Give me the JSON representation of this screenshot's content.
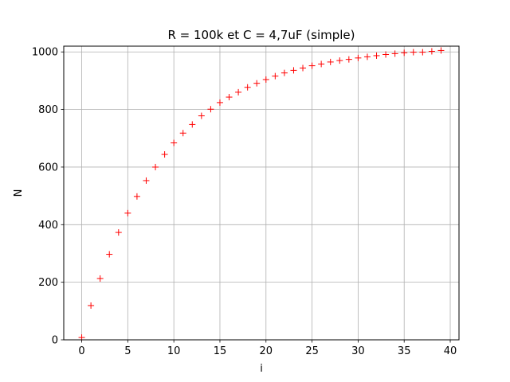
{
  "chart_data": {
    "type": "scatter",
    "title": "R = 100k et C = 4,7uF (simple)",
    "xlabel": "i",
    "ylabel": "N",
    "xlim": [
      -1.95,
      40.95
    ],
    "ylim": [
      0,
      1020
    ],
    "xticks": [
      0,
      5,
      10,
      15,
      20,
      25,
      30,
      35,
      40
    ],
    "yticks": [
      0,
      200,
      400,
      600,
      800,
      1000
    ],
    "grid": true,
    "marker": "+",
    "color": "#ff0000",
    "series": [
      {
        "x": [
          0,
          1,
          2,
          3,
          4,
          5,
          6,
          7,
          8,
          9,
          10,
          11,
          12,
          13,
          14,
          15,
          16,
          17,
          18,
          19,
          20,
          21,
          22,
          23,
          24,
          25,
          26,
          27,
          28,
          29,
          30,
          31,
          32,
          33,
          34,
          35,
          36,
          37,
          38,
          39
        ],
        "y": [
          8,
          119,
          213,
          297,
          373,
          440,
          498,
          553,
          600,
          644,
          684,
          718,
          748,
          778,
          801,
          824,
          843,
          860,
          877,
          891,
          904,
          916,
          927,
          936,
          944,
          952,
          958,
          965,
          970,
          974,
          979,
          983,
          987,
          991,
          994,
          997,
          999,
          999,
          1002,
          1005
        ]
      }
    ]
  }
}
